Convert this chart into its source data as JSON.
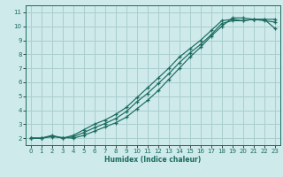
{
  "xlabel": "Humidex (Indice chaleur)",
  "ylabel": "",
  "xlim": [
    -0.5,
    23.5
  ],
  "ylim": [
    1.5,
    11.5
  ],
  "xticks": [
    0,
    1,
    2,
    3,
    4,
    5,
    6,
    7,
    8,
    9,
    10,
    11,
    12,
    13,
    14,
    15,
    16,
    17,
    18,
    19,
    20,
    21,
    22,
    23
  ],
  "yticks": [
    2,
    3,
    4,
    5,
    6,
    7,
    8,
    9,
    10,
    11
  ],
  "background_color": "#ceeaea",
  "grid_color": "#aacece",
  "line_color": "#1a6b60",
  "line1_x": [
    0,
    1,
    2,
    3,
    4,
    5,
    6,
    7,
    8,
    9,
    10,
    11,
    12,
    13,
    14,
    15,
    16,
    17,
    18,
    19,
    20,
    21,
    22,
    23
  ],
  "line1_y": [
    2.0,
    2.0,
    2.2,
    2.0,
    2.2,
    2.6,
    3.0,
    3.3,
    3.7,
    4.2,
    4.9,
    5.6,
    6.3,
    7.0,
    7.8,
    8.4,
    9.0,
    9.7,
    10.4,
    10.5,
    10.4,
    10.5,
    10.5,
    9.85
  ],
  "line2_x": [
    0,
    1,
    2,
    3,
    4,
    5,
    6,
    7,
    8,
    9,
    10,
    11,
    12,
    13,
    14,
    15,
    16,
    17,
    18,
    19,
    20,
    21,
    22,
    23
  ],
  "line2_y": [
    2.0,
    2.0,
    2.15,
    2.0,
    2.1,
    2.4,
    2.75,
    3.05,
    3.4,
    3.9,
    4.6,
    5.2,
    5.9,
    6.6,
    7.4,
    8.1,
    8.7,
    9.4,
    10.2,
    10.4,
    10.4,
    10.5,
    10.4,
    10.3
  ],
  "line3_x": [
    0,
    1,
    2,
    4,
    5,
    6,
    7,
    8,
    9,
    10,
    11,
    12,
    13,
    14,
    15,
    16,
    17,
    18,
    19,
    20,
    21,
    22,
    23
  ],
  "line3_y": [
    2.0,
    2.0,
    2.1,
    2.0,
    2.2,
    2.5,
    2.8,
    3.1,
    3.5,
    4.1,
    4.7,
    5.4,
    6.2,
    7.0,
    7.8,
    8.5,
    9.3,
    10.0,
    10.6,
    10.6,
    10.5,
    10.5,
    10.5
  ]
}
